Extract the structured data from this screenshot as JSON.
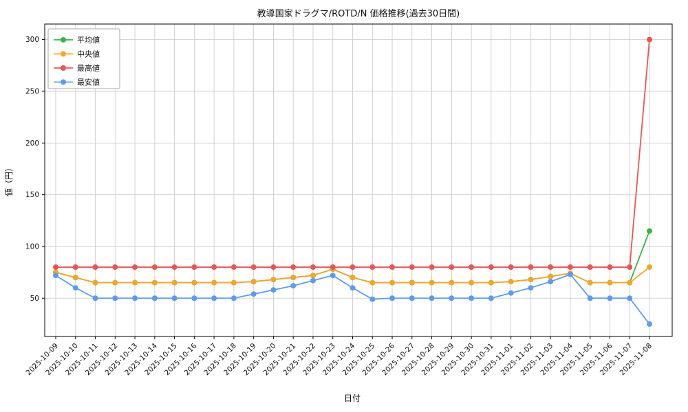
{
  "figure": {
    "title": "教導国家ドラグマ/ROTD/N 価格推移(過去30日間)",
    "xlabel": "日付",
    "ylabel": "値（円）"
  },
  "chart_data": {
    "type": "line",
    "title": "教導国家ドラグマ/ROTD/N 価格推移(過去30日間)",
    "xlabel": "日付",
    "ylabel": "値（円）",
    "grid": true,
    "legend_position": "upper-left",
    "background_color": "#ffffff",
    "grid_color": "#c8c8c8",
    "yticks": [
      50,
      100,
      150,
      200,
      250,
      300
    ],
    "ylim": [
      13,
      315
    ],
    "x": [
      "2025-10-09",
      "2025-10-10",
      "2025-10-11",
      "2025-10-12",
      "2025-10-13",
      "2025-10-14",
      "2025-10-15",
      "2025-10-16",
      "2025-10-17",
      "2025-10-18",
      "2025-10-19",
      "2025-10-20",
      "2025-10-21",
      "2025-10-22",
      "2025-10-23",
      "2025-10-24",
      "2025-10-25",
      "2025-10-26",
      "2025-10-27",
      "2025-10-28",
      "2025-10-29",
      "2025-10-30",
      "2025-10-31",
      "2025-11-01",
      "2025-11-02",
      "2025-11-03",
      "2025-11-04",
      "2025-11-05",
      "2025-11-06",
      "2025-11-07",
      "2025-11-08"
    ],
    "series": [
      {
        "key": "average",
        "name": "平均値",
        "color": "#35b54a",
        "values": [
          75,
          70,
          65,
          65,
          65,
          65,
          65,
          65,
          65,
          65,
          66,
          68,
          70,
          72,
          78,
          70,
          65,
          65,
          65,
          65,
          65,
          65,
          65,
          66,
          68,
          71,
          74,
          65,
          65,
          65,
          115
        ]
      },
      {
        "key": "median",
        "name": "中央値",
        "color": "#f5a623",
        "values": [
          75,
          70,
          65,
          65,
          65,
          65,
          65,
          65,
          65,
          65,
          66,
          68,
          70,
          72,
          78,
          70,
          65,
          65,
          65,
          65,
          65,
          65,
          65,
          66,
          68,
          71,
          74,
          65,
          65,
          65,
          80
        ]
      },
      {
        "key": "max",
        "name": "最高値",
        "color": "#ef5350",
        "values": [
          80,
          80,
          80,
          80,
          80,
          80,
          80,
          80,
          80,
          80,
          80,
          80,
          80,
          80,
          80,
          80,
          80,
          80,
          80,
          80,
          80,
          80,
          80,
          80,
          80,
          80,
          80,
          80,
          80,
          80,
          300
        ]
      },
      {
        "key": "min",
        "name": "最安値",
        "color": "#5b9bf5",
        "values": [
          72,
          60,
          50,
          50,
          50,
          50,
          50,
          50,
          50,
          50,
          54,
          58,
          62,
          67,
          72,
          60,
          49,
          50,
          50,
          50,
          50,
          50,
          50,
          55,
          60,
          66,
          73,
          50,
          50,
          50,
          25
        ]
      }
    ]
  }
}
